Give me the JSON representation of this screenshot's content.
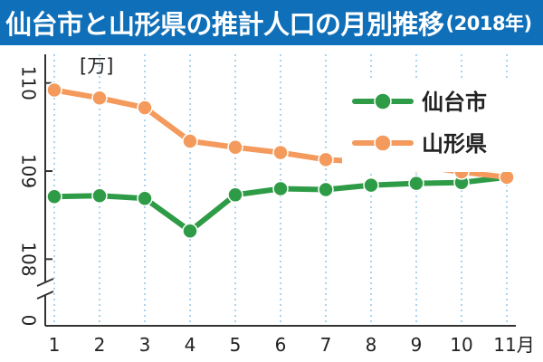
{
  "title": {
    "main": "仙台市と山形県の推計人口の月別推移",
    "year": "(2018年)"
  },
  "colors": {
    "title_bg": "#0f6fb8",
    "sendai": "#2e9b47",
    "yamagata": "#f39a5c",
    "grid": "#8fc6e6"
  },
  "chart_data": {
    "type": "line",
    "title": "仙台市と山形県の推計人口の月別推移(2018年)",
    "unit": "[万]",
    "x": [
      1,
      2,
      3,
      4,
      5,
      6,
      7,
      8,
      9,
      10,
      11
    ],
    "x_tick_labels": [
      "1",
      "2",
      "3",
      "4",
      "5",
      "6",
      "7",
      "8",
      "9",
      "10",
      "11月"
    ],
    "y_tick_labels": [
      "110",
      "109",
      "108",
      "0"
    ],
    "y_ticks": [
      110,
      109,
      108
    ],
    "ylim": [
      107.5,
      110.1
    ],
    "y_axis_break": true,
    "grid": "vertical dotted",
    "legend": "top-right",
    "series": [
      {
        "name": "仙台市",
        "color": "#2e9b47",
        "values": [
          108.71,
          108.72,
          108.69,
          108.32,
          108.73,
          108.8,
          108.79,
          108.84,
          108.86,
          108.87,
          108.93
        ]
      },
      {
        "name": "山形県",
        "color": "#f39a5c",
        "values": [
          109.92,
          109.83,
          109.72,
          109.34,
          109.27,
          109.21,
          109.13,
          109.1,
          109.06,
          108.99,
          108.93
        ]
      }
    ]
  }
}
